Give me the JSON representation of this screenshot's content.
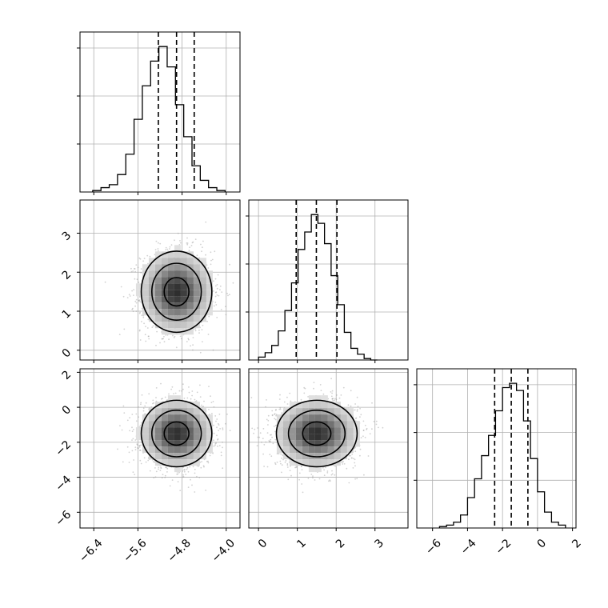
{
  "chart_data": {
    "type": "corner",
    "params": [
      {
        "range": [
          -6.65,
          -3.75
        ],
        "ticks": [
          -6.4,
          -5.6,
          -4.8,
          -4.0
        ],
        "tick_labels": [
          "−6.4",
          "−5.6",
          "−4.8",
          "−4.0"
        ],
        "quantiles": [
          -5.23,
          -4.9,
          -4.58
        ]
      },
      {
        "range": [
          -0.25,
          3.85
        ],
        "ticks": [
          0,
          1,
          2,
          3
        ],
        "tick_labels": [
          "0",
          "1",
          "2",
          "3"
        ],
        "quantiles": [
          0.97,
          1.49,
          2.02
        ]
      },
      {
        "range": [
          -6.9,
          2.2
        ],
        "ticks": [
          -6,
          -4,
          -2,
          0,
          2
        ],
        "tick_labels": [
          "−6",
          "−4",
          "−2",
          "0",
          "2"
        ],
        "quantiles": [
          -2.45,
          -1.5,
          -0.55
        ]
      }
    ],
    "marginals": [
      {
        "edges": [
          -6.42,
          -6.27,
          -6.12,
          -5.97,
          -5.82,
          -5.67,
          -5.52,
          -5.37,
          -5.22,
          -5.07,
          -4.92,
          -4.77,
          -4.62,
          -4.47,
          -4.32,
          -4.17,
          -4.02
        ],
        "counts": [
          0.01,
          0.03,
          0.05,
          0.12,
          0.26,
          0.5,
          0.73,
          0.9,
          1.0,
          0.86,
          0.6,
          0.38,
          0.18,
          0.08,
          0.03,
          0.01
        ]
      },
      {
        "edges": [
          0.0,
          0.17,
          0.34,
          0.51,
          0.68,
          0.85,
          1.02,
          1.19,
          1.36,
          1.53,
          1.7,
          1.87,
          2.04,
          2.21,
          2.38,
          2.55,
          2.72,
          2.89,
          3.06
        ],
        "counts": [
          0.02,
          0.05,
          0.1,
          0.2,
          0.34,
          0.53,
          0.76,
          0.88,
          1.0,
          0.94,
          0.8,
          0.58,
          0.38,
          0.19,
          0.08,
          0.04,
          0.01,
          0.0
        ]
      },
      {
        "edges": [
          -5.6,
          -5.2,
          -4.8,
          -4.4,
          -4.0,
          -3.6,
          -3.2,
          -2.8,
          -2.4,
          -2.0,
          -1.6,
          -1.2,
          -0.8,
          -0.4,
          0.0,
          0.4,
          0.8,
          1.2,
          1.6
        ],
        "counts": [
          0.01,
          0.02,
          0.04,
          0.09,
          0.21,
          0.34,
          0.5,
          0.64,
          0.81,
          0.97,
          1.0,
          0.95,
          0.74,
          0.48,
          0.25,
          0.11,
          0.04,
          0.02
        ]
      }
    ],
    "pairs": [
      {
        "x_param": 0,
        "y_param": 1,
        "center": [
          -4.9,
          1.5
        ],
        "sigma": [
          0.32,
          0.52
        ],
        "contour_levels": [
          1.0,
          0.65,
          0.35
        ]
      },
      {
        "x_param": 0,
        "y_param": 2,
        "center": [
          -4.9,
          -1.5
        ],
        "sigma": [
          0.32,
          0.95
        ],
        "contour_levels": [
          1.0,
          0.65,
          0.35
        ]
      },
      {
        "x_param": 1,
        "y_param": 2,
        "center": [
          1.5,
          -1.5
        ],
        "sigma": [
          0.52,
          0.95
        ],
        "contour_levels": [
          1.0,
          0.65,
          0.35
        ]
      }
    ],
    "grid": true,
    "colors": {
      "line": "#000000",
      "grid": "#b0b0b0",
      "points": "#9a9a9a"
    }
  }
}
